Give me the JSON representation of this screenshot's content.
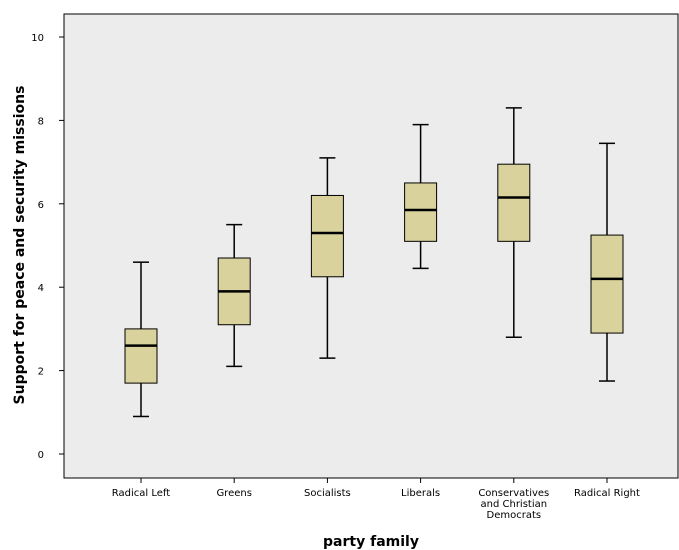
{
  "chart_data": {
    "type": "boxplot",
    "xlabel": "party family",
    "ylabel": "Support for peace and security missions",
    "ylim": [
      -0.4,
      10.6
    ],
    "yticks": [
      0,
      2,
      4,
      6,
      8,
      10
    ],
    "grid": false,
    "colors": {
      "plot_bg": "#ececec",
      "box_fill": "#d9d29c",
      "stroke": "#000000"
    },
    "categories": [
      [
        "Radical Left"
      ],
      [
        "Greens"
      ],
      [
        "Socialists"
      ],
      [
        "Liberals"
      ],
      [
        "Conservatives",
        "and Christian",
        "Democrats"
      ],
      [
        "Radical Right"
      ]
    ],
    "boxes": [
      {
        "whisker_low": 0.9,
        "q1": 1.7,
        "median": 2.6,
        "q3": 3.0,
        "whisker_high": 4.6
      },
      {
        "whisker_low": 2.1,
        "q1": 3.1,
        "median": 3.9,
        "q3": 4.7,
        "whisker_high": 5.5
      },
      {
        "whisker_low": 2.3,
        "q1": 4.25,
        "median": 5.3,
        "q3": 6.2,
        "whisker_high": 7.1
      },
      {
        "whisker_low": 4.45,
        "q1": 5.1,
        "median": 5.85,
        "q3": 6.5,
        "whisker_high": 7.9
      },
      {
        "whisker_low": 2.8,
        "q1": 5.1,
        "median": 6.15,
        "q3": 6.95,
        "whisker_high": 8.3
      },
      {
        "whisker_low": 1.75,
        "q1": 2.9,
        "median": 4.2,
        "q3": 5.25,
        "whisker_high": 7.45
      }
    ]
  }
}
